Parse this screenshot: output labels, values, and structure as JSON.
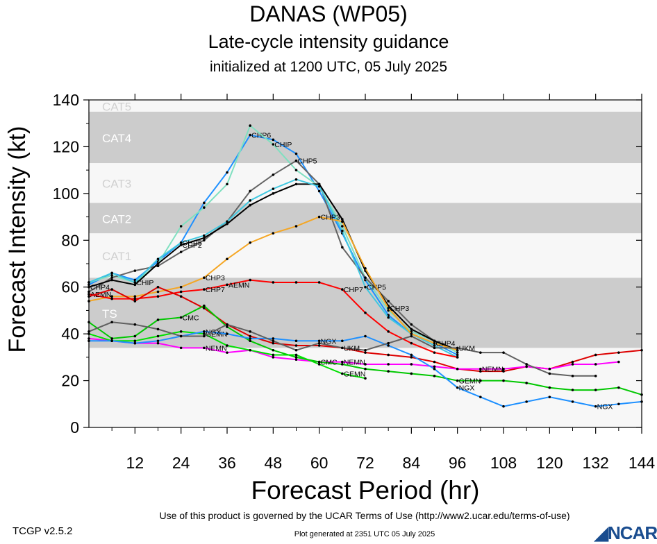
{
  "header": {
    "title": "DANAS (WP05)",
    "subtitle": "Late-cycle intensity guidance",
    "initialized": "initialized at 1200 UTC, 05 July 2025"
  },
  "footer": {
    "terms": "Use of this product is governed by the UCAR Terms of Use (http://www2.ucar.edu/terms-of-use)",
    "version": "TCGP v2.5.2",
    "generated": "Plot generated at 2351 UTC   05 July 2025",
    "logo_text": "NCAR"
  },
  "chart_data": {
    "type": "line",
    "xlabel": "Forecast Period (hr)",
    "ylabel": "Forecast Intensity (kt)",
    "xlim": [
      0,
      144
    ],
    "ylim": [
      0,
      140
    ],
    "xticks": [
      12,
      24,
      36,
      48,
      60,
      72,
      84,
      96,
      108,
      120,
      132,
      144
    ],
    "yticks": [
      0,
      20,
      40,
      60,
      80,
      100,
      120,
      140
    ],
    "grid": false,
    "category_bands": [
      {
        "label": "TS",
        "from": 34,
        "to": 64,
        "color": "#cccccc"
      },
      {
        "label": "CAT1",
        "from": 64,
        "to": 83,
        "color": "#f7f7f7"
      },
      {
        "label": "CAT2",
        "from": 83,
        "to": 96,
        "color": "#cccccc"
      },
      {
        "label": "CAT3",
        "from": 96,
        "to": 113,
        "color": "#f7f7f7"
      },
      {
        "label": "CAT4",
        "from": 113,
        "to": 135,
        "color": "#cccccc"
      },
      {
        "label": "CAT5",
        "from": 135,
        "to": 140,
        "color": "#f7f7f7"
      }
    ],
    "below_ts_color": "#f7f7f7",
    "series": [
      {
        "color": "#1e90ff",
        "label_at": [
          [
            42,
            "CHP6"
          ]
        ],
        "points": [
          [
            0,
            61
          ],
          [
            6,
            66
          ],
          [
            12,
            63
          ],
          [
            18,
            71
          ],
          [
            24,
            79
          ],
          [
            30,
            96
          ],
          [
            36,
            109
          ],
          [
            42,
            125
          ],
          [
            48,
            123
          ],
          [
            54,
            117
          ],
          [
            60,
            101
          ],
          [
            66,
            83
          ],
          [
            72,
            63
          ],
          [
            78,
            48
          ],
          [
            84,
            40
          ],
          [
            90,
            36
          ],
          [
            96,
            31
          ]
        ]
      },
      {
        "color": "#7fe0c0",
        "label_at": [
          [
            48,
            "CHIP"
          ],
          [
            12,
            "CHIP"
          ]
        ],
        "points": [
          [
            0,
            62
          ],
          [
            6,
            65
          ],
          [
            12,
            62
          ],
          [
            18,
            70
          ],
          [
            24,
            86
          ],
          [
            30,
            94
          ],
          [
            36,
            104
          ],
          [
            42,
            129
          ],
          [
            48,
            121
          ],
          [
            54,
            110
          ],
          [
            60,
            103
          ],
          [
            66,
            86
          ],
          [
            72,
            64
          ],
          [
            78,
            50
          ],
          [
            84,
            41
          ],
          [
            90,
            37
          ],
          [
            96,
            32
          ]
        ]
      },
      {
        "color": "#646464",
        "label_at": [
          [
            54,
            "CHP5"
          ]
        ],
        "points": [
          [
            0,
            58
          ],
          [
            6,
            64
          ],
          [
            12,
            67
          ],
          [
            18,
            69
          ],
          [
            24,
            75
          ],
          [
            30,
            80
          ],
          [
            36,
            88
          ],
          [
            42,
            101
          ],
          [
            48,
            108
          ],
          [
            54,
            114
          ],
          [
            60,
            104
          ],
          [
            66,
            77
          ],
          [
            72,
            64
          ],
          [
            78,
            54
          ],
          [
            84,
            44
          ],
          [
            90,
            37
          ],
          [
            96,
            33
          ]
        ]
      },
      {
        "color": "#000000",
        "label_at": [
          [
            24,
            "CHP2"
          ],
          [
            56,
            "CHP4"
          ]
        ],
        "points": [
          [
            0,
            60
          ],
          [
            6,
            63
          ],
          [
            12,
            61
          ],
          [
            18,
            70
          ],
          [
            24,
            78
          ],
          [
            30,
            81
          ],
          [
            36,
            87
          ],
          [
            42,
            95
          ],
          [
            48,
            100
          ],
          [
            54,
            104
          ],
          [
            60,
            104
          ],
          [
            66,
            89
          ],
          [
            72,
            67
          ],
          [
            78,
            52
          ],
          [
            84,
            42
          ],
          [
            90,
            37
          ],
          [
            96,
            33
          ]
        ]
      },
      {
        "color": "#40c8e0",
        "label_at": [
          [
            24,
            "CHP5"
          ],
          [
            72,
            "CHP5"
          ]
        ],
        "points": [
          [
            0,
            62
          ],
          [
            6,
            66
          ],
          [
            12,
            62
          ],
          [
            18,
            72
          ],
          [
            24,
            79
          ],
          [
            30,
            82
          ],
          [
            36,
            88
          ],
          [
            42,
            97
          ],
          [
            48,
            102
          ],
          [
            54,
            106
          ],
          [
            60,
            103
          ],
          [
            66,
            84
          ],
          [
            72,
            60
          ],
          [
            78,
            47
          ],
          [
            84,
            40
          ],
          [
            90,
            35
          ],
          [
            96,
            30
          ]
        ]
      },
      {
        "color": "#f5a623",
        "label_at": [
          [
            30,
            "CHP3"
          ],
          [
            60,
            "CHP3"
          ],
          [
            78,
            "CHP3"
          ],
          [
            90,
            "CHP4"
          ]
        ],
        "points": [
          [
            0,
            54
          ],
          [
            6,
            56
          ],
          [
            12,
            56
          ],
          [
            18,
            58
          ],
          [
            24,
            60
          ],
          [
            30,
            64
          ],
          [
            36,
            72
          ],
          [
            42,
            79
          ],
          [
            48,
            83
          ],
          [
            54,
            86
          ],
          [
            60,
            90
          ],
          [
            66,
            88
          ],
          [
            72,
            68
          ],
          [
            78,
            51
          ],
          [
            84,
            40
          ],
          [
            90,
            36
          ],
          [
            96,
            33
          ]
        ]
      },
      {
        "color": "#ff0000",
        "label_at": [
          [
            30,
            "CHP7"
          ],
          [
            66,
            "CHP7"
          ],
          [
            36,
            "AEMN"
          ],
          [
            132,
            "AEMN"
          ]
        ],
        "points": [
          [
            0,
            57
          ],
          [
            6,
            55
          ],
          [
            12,
            55
          ],
          [
            18,
            56
          ],
          [
            24,
            58
          ],
          [
            30,
            59
          ],
          [
            36,
            61
          ],
          [
            42,
            63
          ],
          [
            48,
            62
          ],
          [
            54,
            62
          ],
          [
            60,
            62
          ],
          [
            66,
            59
          ],
          [
            72,
            49
          ],
          [
            78,
            41
          ],
          [
            84,
            36
          ],
          [
            90,
            32
          ],
          [
            96,
            30
          ]
        ]
      },
      {
        "color": "#dd0000",
        "label_at": [],
        "points": [
          [
            0,
            56
          ],
          [
            6,
            59
          ],
          [
            12,
            54
          ],
          [
            18,
            60
          ],
          [
            24,
            56
          ],
          [
            30,
            51
          ],
          [
            36,
            44
          ],
          [
            42,
            39
          ],
          [
            48,
            36
          ],
          [
            54,
            35
          ],
          [
            60,
            35
          ],
          [
            66,
            34
          ],
          [
            72,
            32
          ],
          [
            78,
            31
          ],
          [
            84,
            30
          ],
          [
            90,
            28
          ],
          [
            96,
            25
          ],
          [
            102,
            24
          ],
          [
            108,
            24
          ],
          [
            114,
            26
          ],
          [
            120,
            25
          ],
          [
            126,
            28
          ],
          [
            132,
            31
          ],
          [
            138,
            32
          ],
          [
            144,
            33
          ]
        ]
      },
      {
        "color": "#ff00ff",
        "label_at": [
          [
            30,
            "NEMN"
          ],
          [
            66,
            "NEMN"
          ],
          [
            102,
            "NEMN"
          ]
        ],
        "points": [
          [
            0,
            38
          ],
          [
            6,
            37
          ],
          [
            12,
            36
          ],
          [
            18,
            36
          ],
          [
            24,
            34
          ],
          [
            30,
            34
          ],
          [
            36,
            32
          ],
          [
            42,
            33
          ],
          [
            48,
            30
          ],
          [
            54,
            29
          ],
          [
            60,
            28
          ],
          [
            66,
            28
          ],
          [
            72,
            27
          ],
          [
            78,
            27
          ],
          [
            84,
            27
          ],
          [
            90,
            26
          ],
          [
            96,
            25
          ],
          [
            102,
            25
          ],
          [
            108,
            25
          ],
          [
            114,
            26
          ],
          [
            120,
            25
          ],
          [
            126,
            27
          ],
          [
            132,
            27
          ],
          [
            138,
            28
          ]
        ]
      },
      {
        "color": "#00c800",
        "label_at": [
          [
            24,
            "CMC"
          ],
          [
            60,
            "CMC"
          ],
          [
            96,
            "GEMN"
          ]
        ],
        "points": [
          [
            0,
            45
          ],
          [
            6,
            38
          ],
          [
            12,
            39
          ],
          [
            18,
            46
          ],
          [
            24,
            47
          ],
          [
            30,
            52
          ],
          [
            36,
            43
          ],
          [
            42,
            37
          ],
          [
            48,
            33
          ],
          [
            54,
            30
          ],
          [
            60,
            28
          ],
          [
            66,
            27
          ],
          [
            72,
            25
          ],
          [
            78,
            24
          ],
          [
            84,
            23
          ],
          [
            90,
            22
          ],
          [
            96,
            20
          ],
          [
            102,
            20
          ],
          [
            108,
            20
          ],
          [
            114,
            19
          ],
          [
            120,
            17
          ],
          [
            126,
            16
          ],
          [
            132,
            16
          ],
          [
            138,
            17
          ],
          [
            144,
            14
          ]
        ]
      },
      {
        "color": "#00e000",
        "label_at": [
          [
            30,
            "GEMN"
          ],
          [
            66,
            "GEMN"
          ]
        ],
        "points": [
          [
            0,
            40
          ],
          [
            6,
            37
          ],
          [
            12,
            37
          ],
          [
            18,
            39
          ],
          [
            24,
            41
          ],
          [
            30,
            40
          ],
          [
            36,
            35
          ],
          [
            42,
            33
          ],
          [
            48,
            31
          ],
          [
            54,
            31
          ],
          [
            60,
            27
          ],
          [
            66,
            23
          ],
          [
            72,
            21
          ]
        ]
      },
      {
        "color": "#1e90ff",
        "label_at": [
          [
            30,
            "NGX"
          ],
          [
            60,
            "NGX"
          ],
          [
            96,
            "NGX"
          ],
          [
            132,
            "NGX"
          ]
        ],
        "points": [
          [
            0,
            37
          ],
          [
            6,
            37
          ],
          [
            12,
            36
          ],
          [
            18,
            37
          ],
          [
            24,
            39
          ],
          [
            30,
            41
          ],
          [
            36,
            40
          ],
          [
            42,
            38
          ],
          [
            48,
            38
          ],
          [
            54,
            37
          ],
          [
            60,
            37
          ],
          [
            66,
            37
          ],
          [
            72,
            39
          ],
          [
            78,
            35
          ],
          [
            84,
            31
          ],
          [
            90,
            25
          ],
          [
            96,
            17
          ],
          [
            102,
            13
          ],
          [
            108,
            9
          ],
          [
            114,
            11
          ],
          [
            120,
            13
          ],
          [
            126,
            11
          ],
          [
            132,
            9
          ],
          [
            138,
            10
          ],
          [
            144,
            11
          ]
        ]
      },
      {
        "color": "#606060",
        "label_at": [
          [
            96,
            "UKM"
          ],
          [
            66,
            "UKM"
          ]
        ],
        "points": [
          [
            0,
            41
          ],
          [
            6,
            45
          ],
          [
            12,
            44
          ],
          [
            18,
            42
          ],
          [
            24,
            39
          ],
          [
            30,
            39
          ],
          [
            36,
            44
          ],
          [
            42,
            41
          ],
          [
            48,
            37
          ],
          [
            54,
            33
          ],
          [
            60,
            36
          ],
          [
            66,
            34
          ],
          [
            72,
            33
          ],
          [
            78,
            36
          ],
          [
            84,
            39
          ],
          [
            90,
            34
          ],
          [
            96,
            34
          ],
          [
            102,
            32
          ],
          [
            108,
            32
          ],
          [
            114,
            27
          ],
          [
            120,
            23
          ],
          [
            126,
            22
          ],
          [
            132,
            22
          ]
        ]
      }
    ]
  }
}
